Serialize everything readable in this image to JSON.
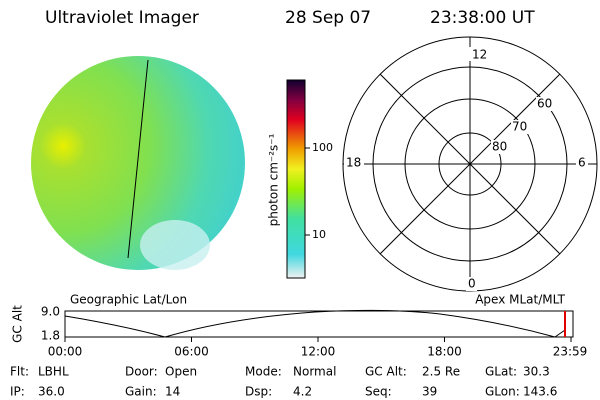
{
  "header": {
    "instrument": "Ultraviolet Imager",
    "date": "28 Sep 07",
    "time": "23:38:00 UT"
  },
  "colorbar": {
    "unit_label": "photon cm⁻²s⁻¹",
    "ticks": [
      "100",
      "10"
    ]
  },
  "polar": {
    "mlt_labels": [
      "12",
      "18",
      "6",
      "0"
    ],
    "lat_labels": [
      "60",
      "70",
      "80"
    ]
  },
  "labels": {
    "left": "Geographic Lat/Lon",
    "right": "Apex MLat/MLT"
  },
  "alt_plot": {
    "axis_label": "GC Alt",
    "yticks": [
      "9.0",
      "1.8"
    ],
    "xticks": [
      "00:00",
      "06:00",
      "12:00",
      "18:00",
      "23:59"
    ]
  },
  "info": [
    [
      {
        "label": "Flt:",
        "value": "LBHL"
      },
      {
        "label": "Door:",
        "value": "Open"
      },
      {
        "label": "Mode:",
        "value": "Normal"
      },
      {
        "label": "GC Alt:",
        "value": "2.5 Re"
      },
      {
        "label": "GLat:",
        "value": "30.3"
      }
    ],
    [
      {
        "label": "IP:",
        "value": "36.0"
      },
      {
        "label": "Gain:",
        "value": "14"
      },
      {
        "label": "Dsp:",
        "value": "4.2"
      },
      {
        "label": "Seq:",
        "value": "39"
      },
      {
        "label": "GLon:",
        "value": "143.6"
      }
    ]
  ]
}
